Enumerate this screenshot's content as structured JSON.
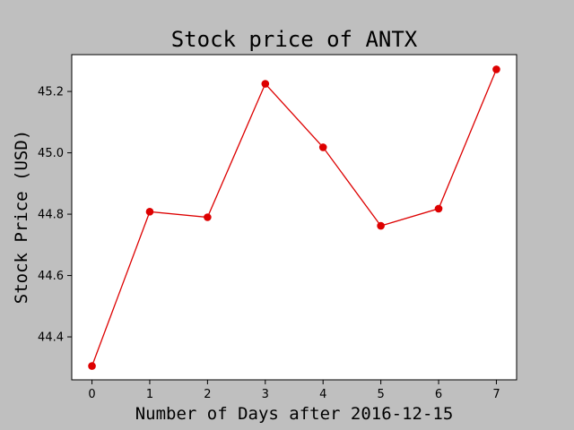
{
  "chart_data": {
    "type": "line",
    "title": "Stock price of ANTX",
    "xlabel": "Number of Days after 2016-12-15",
    "ylabel": "Stock Price (USD)",
    "x": [
      0,
      1,
      2,
      3,
      4,
      5,
      6,
      7
    ],
    "series": [
      {
        "values": [
          44.305,
          44.808,
          44.79,
          45.225,
          45.018,
          44.762,
          44.818,
          45.272
        ]
      }
    ],
    "xlim": [
      -0.35,
      7.35
    ],
    "ylim": [
      44.26,
      45.32
    ],
    "x_ticks": [
      0,
      1,
      2,
      3,
      4,
      5,
      6,
      7
    ],
    "x_tick_labels": [
      "0",
      "1",
      "2",
      "3",
      "4",
      "5",
      "6",
      "7"
    ],
    "y_ticks": [
      44.4,
      44.6,
      44.8,
      45.0,
      45.2
    ],
    "y_tick_labels": [
      "44.4",
      "44.6",
      "44.8",
      "45.0",
      "45.2"
    ],
    "grid": false,
    "legend": "none",
    "line_color": "#dd0000",
    "figure_background": "#bfbfbf",
    "plot_background": "#ffffff"
  }
}
